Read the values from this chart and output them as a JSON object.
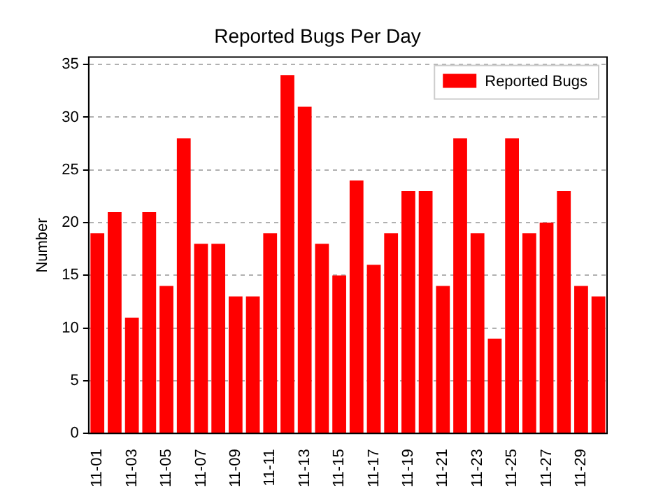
{
  "chart_data": {
    "type": "bar",
    "title": "Reported Bugs Per Day",
    "ylabel": "Number",
    "categories": [
      "11-01",
      null,
      "11-03",
      null,
      "11-05",
      null,
      "11-07",
      null,
      "11-09",
      null,
      "11-11",
      null,
      "11-13",
      null,
      "11-15",
      null,
      "11-17",
      null,
      "11-19",
      null,
      "11-21",
      null,
      "11-23",
      null,
      "11-25",
      null,
      "11-27",
      null,
      "11-29",
      null
    ],
    "series": [
      {
        "name": "Reported Bugs",
        "color": "#ff0000",
        "values": [
          19,
          21,
          11,
          21,
          14,
          28,
          18,
          18,
          13,
          13,
          19,
          34,
          31,
          18,
          15,
          24,
          16,
          19,
          23,
          23,
          14,
          28,
          19,
          9,
          28,
          19,
          20,
          23,
          14,
          13
        ]
      }
    ],
    "ylim": [
      0,
      35.7
    ],
    "yticks": [
      0,
      5,
      10,
      15,
      20,
      25,
      30,
      35
    ],
    "grid": "y",
    "legend": "top right"
  }
}
